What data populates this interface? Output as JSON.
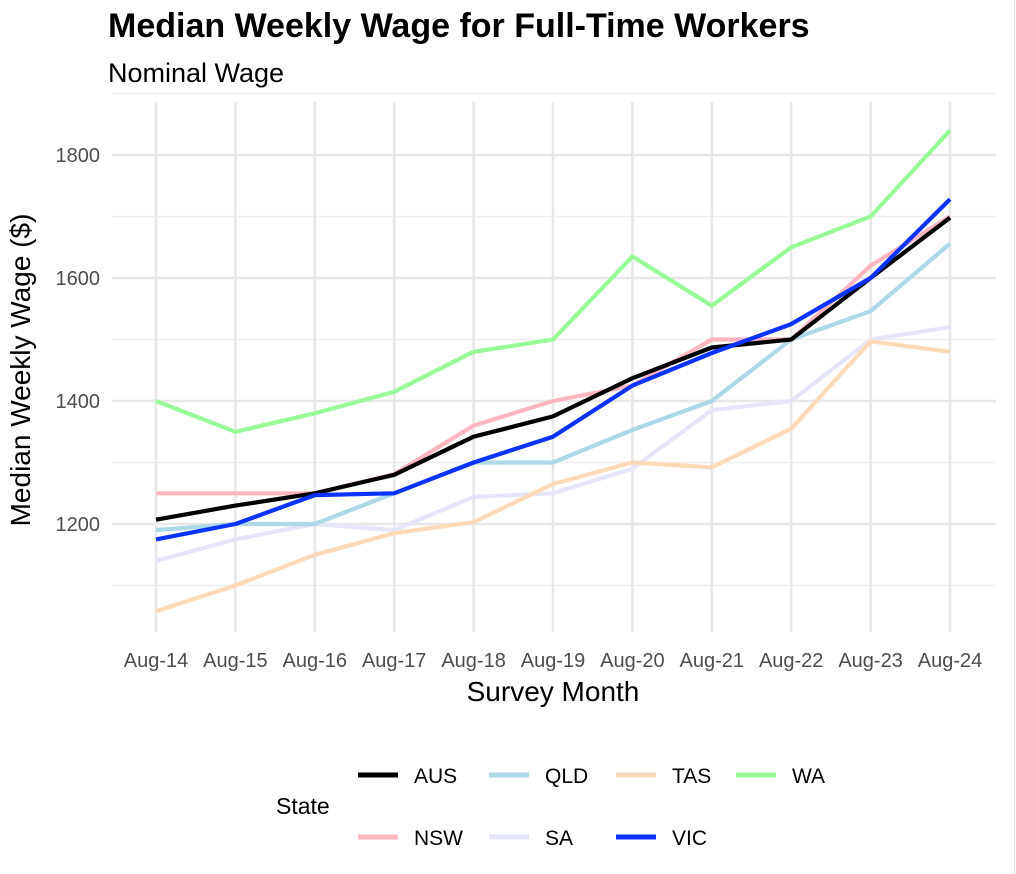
{
  "chart_data": {
    "type": "line",
    "title": "Median Weekly Wage for Full-Time Workers",
    "subtitle": "Nominal Wage",
    "xlabel": "Survey Month",
    "ylabel": "Median Weekly Wage ($)",
    "categories": [
      "Aug-14",
      "Aug-15",
      "Aug-16",
      "Aug-17",
      "Aug-18",
      "Aug-19",
      "Aug-20",
      "Aug-21",
      "Aug-22",
      "Aug-23",
      "Aug-24"
    ],
    "ylim": [
      1050,
      1880
    ],
    "yticks": [
      1200,
      1400,
      1600,
      1800
    ],
    "grid": true,
    "legend_title": "State",
    "legend_position": "bottom",
    "series": [
      {
        "name": "AUS",
        "color": "#000000",
        "values": [
          1207,
          1230,
          1250,
          1280,
          1342,
          1375,
          1437,
          1487,
          1500,
          1600,
          1698
        ]
      },
      {
        "name": "NSW",
        "color": "#ffb6c1",
        "values": [
          1250,
          1250,
          1250,
          1281,
          1360,
          1400,
          1425,
          1500,
          1500,
          1620,
          1700
        ]
      },
      {
        "name": "QLD",
        "color": "#add8e6",
        "values": [
          1190,
          1200,
          1200,
          1250,
          1300,
          1300,
          1353,
          1400,
          1500,
          1546,
          1656
        ]
      },
      {
        "name": "SA",
        "color": "#e6e6fa",
        "values": [
          1140,
          1175,
          1200,
          1190,
          1244,
          1250,
          1290,
          1385,
          1400,
          1500,
          1520
        ]
      },
      {
        "name": "TAS",
        "color": "#ffdab9",
        "values": [
          1058,
          1100,
          1150,
          1185,
          1203,
          1265,
          1300,
          1292,
          1355,
          1497,
          1480
        ]
      },
      {
        "name": "VIC",
        "color": "#0a33ff",
        "values": [
          1175,
          1200,
          1247,
          1250,
          1300,
          1342,
          1425,
          1478,
          1525,
          1600,
          1728
        ]
      },
      {
        "name": "WA",
        "color": "#98fb98",
        "values": [
          1400,
          1350,
          1380,
          1415,
          1480,
          1500,
          1635,
          1555,
          1650,
          1700,
          1840
        ]
      }
    ]
  }
}
